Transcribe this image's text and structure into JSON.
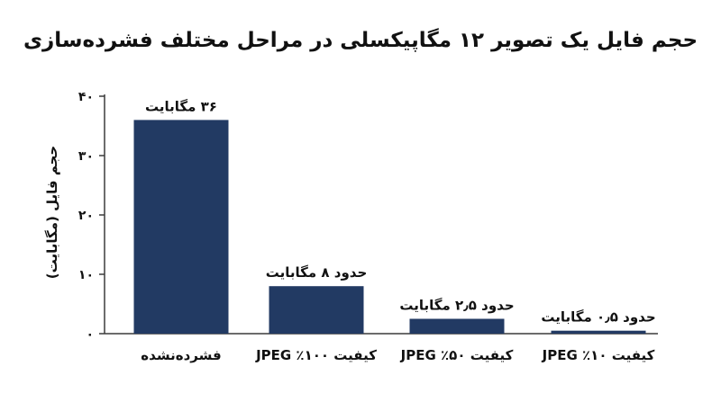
{
  "chart_data": {
    "type": "bar",
    "title": "حجم فایل یک تصویر ۱۲ مگاپیکسلی در مراحل مختلف فشرده‌سازی",
    "xlabel": "",
    "ylabel": "حجم فایل (مگابایت)",
    "ylim": [
      0,
      40
    ],
    "yticks": [
      0,
      10,
      20,
      30,
      40
    ],
    "ytick_labels": [
      "۰",
      "۱۰",
      "۲۰",
      "۳۰",
      "۴۰"
    ],
    "categories": [
      "فشرده‌نشده",
      "کیفیت ۱۰۰٪ JPEG",
      "کیفیت ۵۰٪ JPEG",
      "کیفیت ۱۰٪ JPEG"
    ],
    "values": [
      36,
      8,
      2.5,
      0.5
    ],
    "data_labels": [
      "۳۶ مگابایت",
      "حدود ۸ مگابایت",
      "حدود ۲٫۵ مگابایت",
      "حدود ۰٫۵ مگابایت"
    ],
    "grid": false,
    "bar_color": "#223a63",
    "axis_color": "#3b3b3b"
  }
}
